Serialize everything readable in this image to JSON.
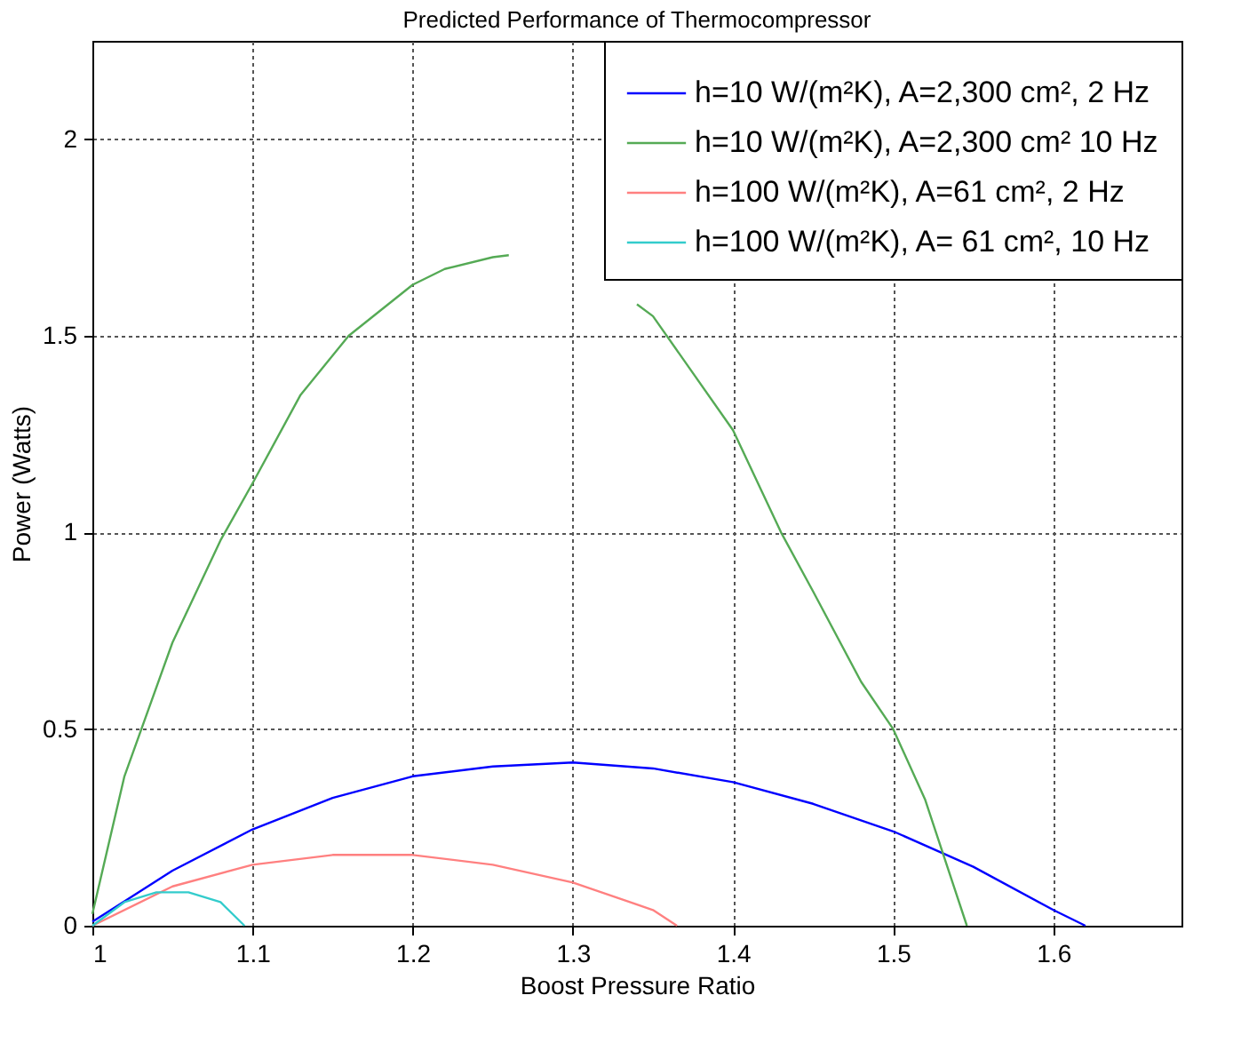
{
  "chart_data": {
    "type": "line",
    "title": "Predicted Performance of Thermocompressor",
    "xlabel": "Boost Pressure Ratio",
    "ylabel": "Power (Watts)",
    "xlim": [
      1,
      1.68
    ],
    "xticks": [
      {
        "value": 1,
        "label": "1"
      },
      1.1,
      1.2,
      1.3,
      1.4,
      1.5,
      1.6
    ],
    "ylim": [
      0,
      2.25
    ],
    "yticks": [
      {
        "value": 0,
        "label": "0"
      },
      0.5,
      {
        "value": 1,
        "label": "1"
      },
      1.5,
      {
        "value": 2,
        "label": "2"
      }
    ],
    "grid": true,
    "legend": "top right",
    "line_style": "solid",
    "marker": "none",
    "series": [
      {
        "name": "h=10 W/(m²K), A=2,300 cm², 2 Hz",
        "color": "#0000ff",
        "x": [
          1.0,
          1.05,
          1.1,
          1.15,
          1.2,
          1.25,
          1.3,
          1.35,
          1.4,
          1.45,
          1.5,
          1.55,
          1.6,
          1.62
        ],
        "values": [
          0.01,
          0.14,
          0.245,
          0.325,
          0.38,
          0.405,
          0.415,
          0.4,
          0.365,
          0.31,
          0.24,
          0.15,
          0.04,
          0.0
        ]
      },
      {
        "name": "h=10 W/(m²K), A=2,300 cm² 10 Hz",
        "color": "#55aa55",
        "x": [
          1.0,
          1.02,
          1.05,
          1.08,
          1.1,
          1.13,
          1.16,
          1.2,
          1.22,
          1.25,
          1.26,
          1.3,
          1.34,
          1.35,
          1.4,
          1.43,
          1.45,
          1.48,
          1.5,
          1.52,
          1.546
        ],
        "values": [
          0.03,
          0.38,
          0.72,
          0.98,
          1.125,
          1.35,
          1.5,
          1.63,
          1.67,
          1.7,
          1.705,
          null,
          1.58,
          1.55,
          1.26,
          1.0,
          0.85,
          0.62,
          0.5,
          0.32,
          0.0
        ]
      },
      {
        "name": "h=100 W/(m²K), A=61 cm², 2 Hz",
        "color": "#ff8080",
        "x": [
          1.0,
          1.05,
          1.1,
          1.15,
          1.2,
          1.25,
          1.3,
          1.35,
          1.365
        ],
        "values": [
          0.0,
          0.1,
          0.155,
          0.18,
          0.18,
          0.155,
          0.11,
          0.04,
          0.0
        ]
      },
      {
        "name": "h=100 W/(m²K), A= 61 cm², 10 Hz",
        "color": "#33cccc",
        "x": [
          1.0,
          1.02,
          1.04,
          1.06,
          1.08,
          1.095
        ],
        "values": [
          0.0,
          0.06,
          0.085,
          0.085,
          0.06,
          0.0
        ]
      }
    ]
  }
}
